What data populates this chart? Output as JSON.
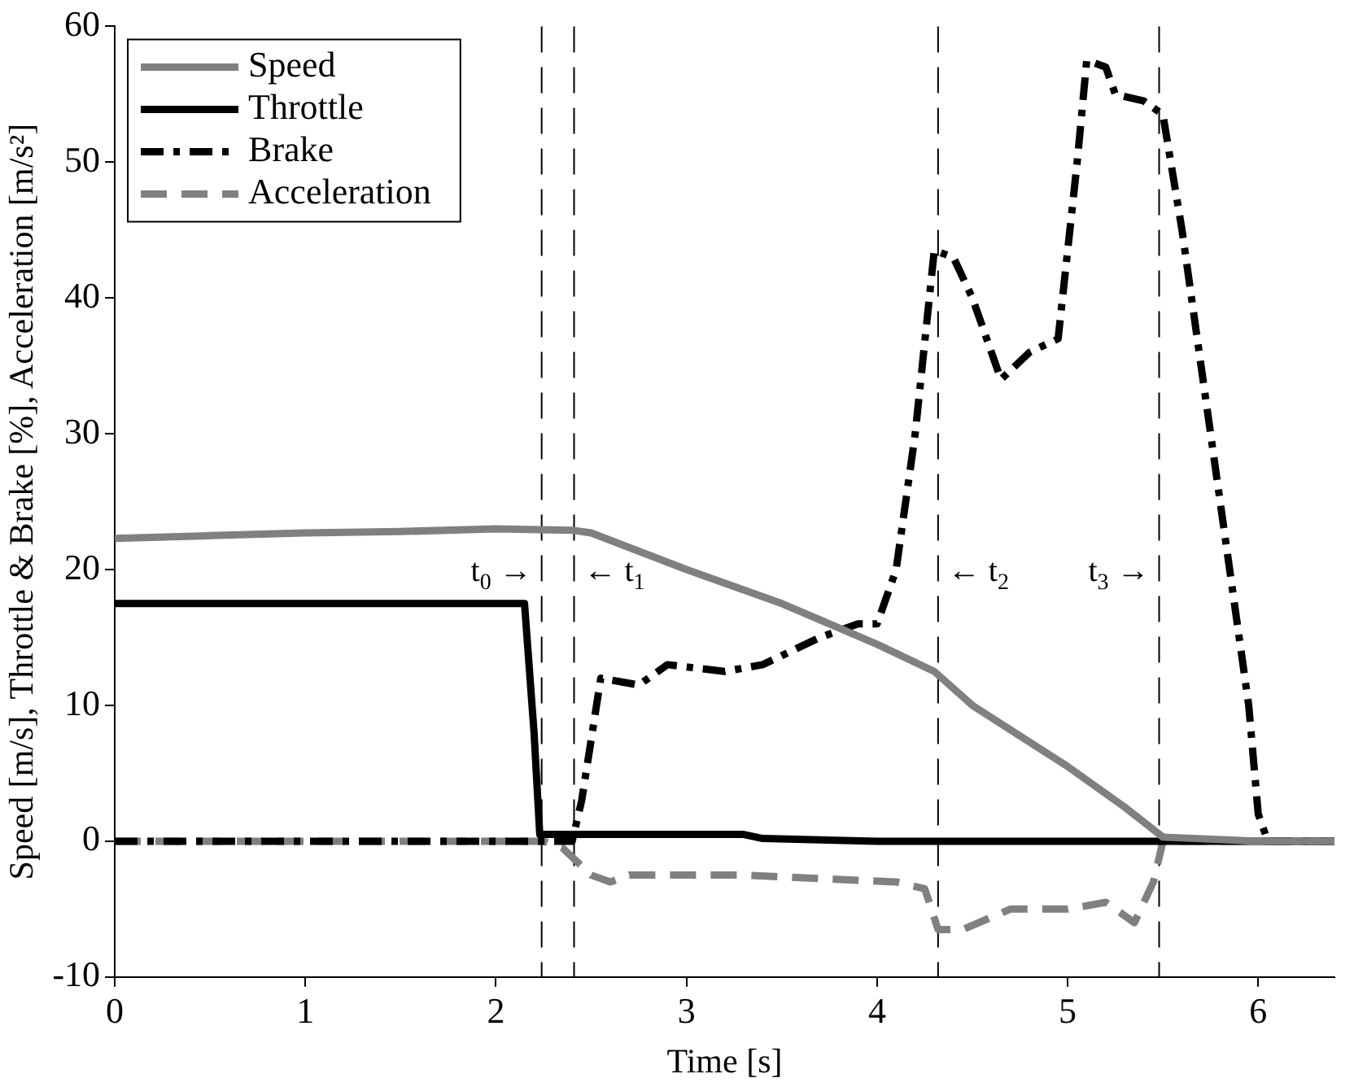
{
  "chart_data": {
    "type": "line",
    "xlabel": "Time [s]",
    "ylabel": "Speed [m/s], Throttle & Brake [%], Acceleration [m/s²]",
    "xlim": [
      0,
      6.4
    ],
    "xticks": [
      0,
      1,
      2,
      3,
      4,
      5,
      6
    ],
    "ylim": [
      -10,
      60
    ],
    "yticks": [
      -10,
      0,
      10,
      20,
      30,
      40,
      50,
      60
    ],
    "grid": false,
    "legend": "top left",
    "marker": "none",
    "series": [
      {
        "name": "Speed",
        "color": "#808080",
        "line_style": "solid",
        "x": [
          0,
          0.5,
          1,
          1.5,
          2,
          2.4,
          2.5,
          3,
          3.5,
          4,
          4.3,
          4.5,
          5,
          5.3,
          5.5,
          6,
          6.4
        ],
        "values": [
          22.3,
          22.5,
          22.7,
          22.8,
          23,
          22.9,
          22.7,
          20,
          17.5,
          14.5,
          12.5,
          10,
          5.5,
          2.5,
          0.3,
          0,
          0
        ]
      },
      {
        "name": "Throttle",
        "color": "#000000",
        "line_style": "solid",
        "x": [
          0,
          2.15,
          2.2,
          2.23,
          3.3,
          3.4,
          4,
          6.4
        ],
        "values": [
          17.5,
          17.5,
          8,
          0.5,
          0.5,
          0.2,
          0,
          0
        ]
      },
      {
        "name": "Brake",
        "color": "#000000",
        "line_style": "dashdot",
        "x": [
          0,
          2.4,
          2.45,
          2.55,
          2.75,
          2.9,
          3.2,
          3.4,
          3.7,
          3.9,
          4.0,
          4.1,
          4.2,
          4.3,
          4.4,
          4.5,
          4.65,
          4.8,
          4.95,
          5.05,
          5.1,
          5.2,
          5.25,
          5.4,
          5.5,
          5.6,
          5.75,
          5.95,
          6.0,
          6.05,
          6.4
        ],
        "values": [
          0,
          0,
          3,
          12,
          11.5,
          13,
          12.5,
          13,
          15,
          16,
          16,
          20,
          30,
          43.5,
          43,
          40,
          34,
          36,
          37,
          50,
          57.5,
          57,
          55,
          54.5,
          53.5,
          45,
          30,
          10,
          2,
          0,
          0
        ]
      },
      {
        "name": "Acceleration",
        "color": "#808080",
        "line_style": "dashed",
        "x": [
          0,
          2.25,
          2.35,
          2.5,
          2.6,
          2.7,
          3.3,
          4.1,
          4.25,
          4.32,
          4.45,
          4.7,
          5.0,
          5.2,
          5.35,
          5.45,
          5.5,
          6.4
        ],
        "values": [
          0,
          0,
          -0.5,
          -2.5,
          -3,
          -2.5,
          -2.5,
          -3,
          -3.5,
          -6.5,
          -6.5,
          -5,
          -5,
          -4.5,
          -6,
          -3,
          0,
          0
        ]
      }
    ],
    "ref_lines": [
      {
        "axis": "x",
        "value": 2.24,
        "label": "t$_{0}$ →",
        "color": "#000000",
        "line_style": "dashed"
      },
      {
        "axis": "x",
        "value": 2.41,
        "label": "← t$_{1}$",
        "color": "#000000",
        "line_style": "dashed"
      },
      {
        "axis": "x",
        "value": 4.32,
        "label": "← t$_{2}$",
        "color": "#000000",
        "line_style": "dashed"
      },
      {
        "axis": "x",
        "value": 5.48,
        "label": "t$_{3}$ →",
        "color": "#000000",
        "line_style": "dashed"
      }
    ]
  }
}
